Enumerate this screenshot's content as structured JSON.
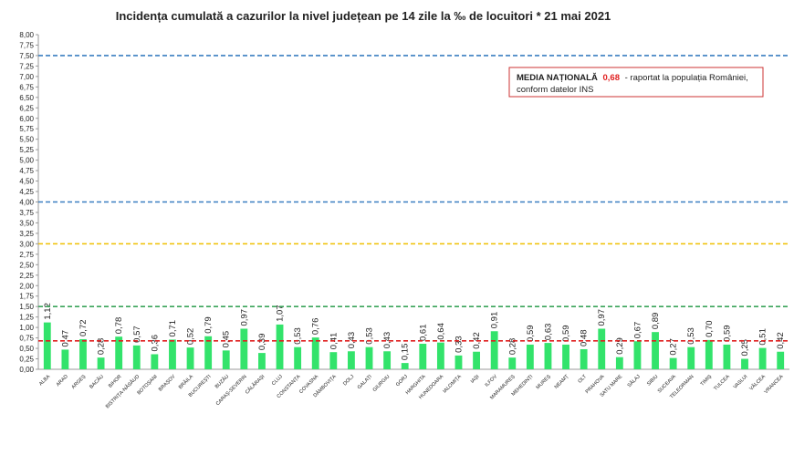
{
  "chart_data": {
    "type": "bar",
    "title": "Incidența cumulată a cazurilor la nivel județean pe 14 zile la ‰ de locuitori *  21 mai 2021",
    "categories": [
      "ALBA",
      "ARAD",
      "ARGEȘ",
      "BACĂU",
      "BIHOR",
      "BISTRIȚA-NĂSĂUD",
      "BOTOȘANI",
      "BRAȘOV",
      "BRĂILA",
      "BUCUREȘTI",
      "BUZĂU",
      "CARAȘ-SEVERIN",
      "CĂLĂRAȘI",
      "CLUJ",
      "CONSTANȚA",
      "COVASNA",
      "DÂMBOVIȚA",
      "DOLJ",
      "GALAȚI",
      "GIURGIU",
      "GORJ",
      "HARGHITA",
      "HUNEDOARA",
      "IALOMIȚA",
      "IAȘI",
      "ILFOV",
      "MARAMUREȘ",
      "MEHEDINȚI",
      "MUREȘ",
      "NEAMȚ",
      "OLT",
      "PRAHOVA",
      "SATU MARE",
      "SĂLAJ",
      "SIBIU",
      "SUCEAVA",
      "TELEORMAN",
      "TIMIȘ",
      "TULCEA",
      "VASLUI",
      "VÂLCEA",
      "VRANCEA"
    ],
    "values": [
      1.12,
      0.47,
      0.72,
      0.28,
      0.78,
      0.57,
      0.36,
      0.71,
      0.52,
      0.79,
      0.45,
      0.97,
      0.39,
      1.07,
      0.53,
      0.76,
      0.41,
      0.43,
      0.53,
      0.43,
      0.15,
      0.61,
      0.64,
      0.33,
      0.42,
      0.91,
      0.28,
      0.59,
      0.63,
      0.59,
      0.48,
      0.97,
      0.29,
      0.67,
      0.89,
      0.27,
      0.53,
      0.7,
      0.59,
      0.25,
      0.51,
      0.42
    ],
    "value_labels": [
      "1,12",
      "0,47",
      "0,72",
      "0,28",
      "0,78",
      "0,57",
      "0,36",
      "0,71",
      "0,52",
      "0,79",
      "0,45",
      "0,97",
      "0,39",
      "1,07",
      "0,53",
      "0,76",
      "0,41",
      "0,43",
      "0,53",
      "0,43",
      "0,15",
      "0,61",
      "0,64",
      "0,33",
      "0,42",
      "0,91",
      "0,28",
      "0,59",
      "0,63",
      "0,59",
      "0,48",
      "0,97",
      "0,29",
      "0,67",
      "0,89",
      "0,27",
      "0,53",
      "0,70",
      "0,59",
      "0,25",
      "0,51",
      "0,42"
    ],
    "color": "#33e36b",
    "ylim": [
      0,
      8
    ],
    "yticks": [
      {
        "value": 0,
        "label": "0,00"
      },
      {
        "value": 0.25,
        "label": "0,25"
      },
      {
        "value": 0.5,
        "label": "0,50"
      },
      {
        "value": 0.75,
        "label": "0,75"
      },
      {
        "value": 1,
        "label": "1,00"
      },
      {
        "value": 1.25,
        "label": "1,25"
      },
      {
        "value": 1.5,
        "label": "1,50"
      },
      {
        "value": 1.75,
        "label": "1,75"
      },
      {
        "value": 2,
        "label": "2,00"
      },
      {
        "value": 2.25,
        "label": "2,25"
      },
      {
        "value": 2.5,
        "label": "2,50"
      },
      {
        "value": 2.75,
        "label": "2,75"
      },
      {
        "value": 3,
        "label": "3,00"
      },
      {
        "value": 3.25,
        "label": "3,25"
      },
      {
        "value": 3.5,
        "label": "3,50"
      },
      {
        "value": 3.75,
        "label": "3,75"
      },
      {
        "value": 4,
        "label": "4,00"
      },
      {
        "value": 4.25,
        "label": "4,25"
      },
      {
        "value": 4.5,
        "label": "4,50"
      },
      {
        "value": 4.75,
        "label": "4,75"
      },
      {
        "value": 5,
        "label": "5,00"
      },
      {
        "value": 5.25,
        "label": "5,25"
      },
      {
        "value": 5.5,
        "label": "5,50"
      },
      {
        "value": 5.75,
        "label": "5,75"
      },
      {
        "value": 6,
        "label": "6,00"
      },
      {
        "value": 6.25,
        "label": "6,25"
      },
      {
        "value": 6.5,
        "label": "6,50"
      },
      {
        "value": 6.75,
        "label": "6,75"
      },
      {
        "value": 7,
        "label": "7,00"
      },
      {
        "value": 7.25,
        "label": "7,25"
      },
      {
        "value": 7.5,
        "label": "7,50"
      },
      {
        "value": 7.75,
        "label": "7,75"
      },
      {
        "value": 8,
        "label": "8,00"
      }
    ],
    "reference_lines": [
      {
        "value": 7.5,
        "color": "#3a7fc1"
      },
      {
        "value": 4,
        "color": "#3a7fc1"
      },
      {
        "value": 3,
        "color": "#f0c000"
      },
      {
        "value": 1.5,
        "color": "#3aa35a"
      }
    ],
    "national_average": {
      "value": 0.68,
      "label": "0,68",
      "color": "#e02020"
    },
    "annotation_label": "MEDIA NAȚIONALĂ",
    "annotation_text": [
      "- raportat la populația României,",
      "conform datelor INS"
    ]
  }
}
